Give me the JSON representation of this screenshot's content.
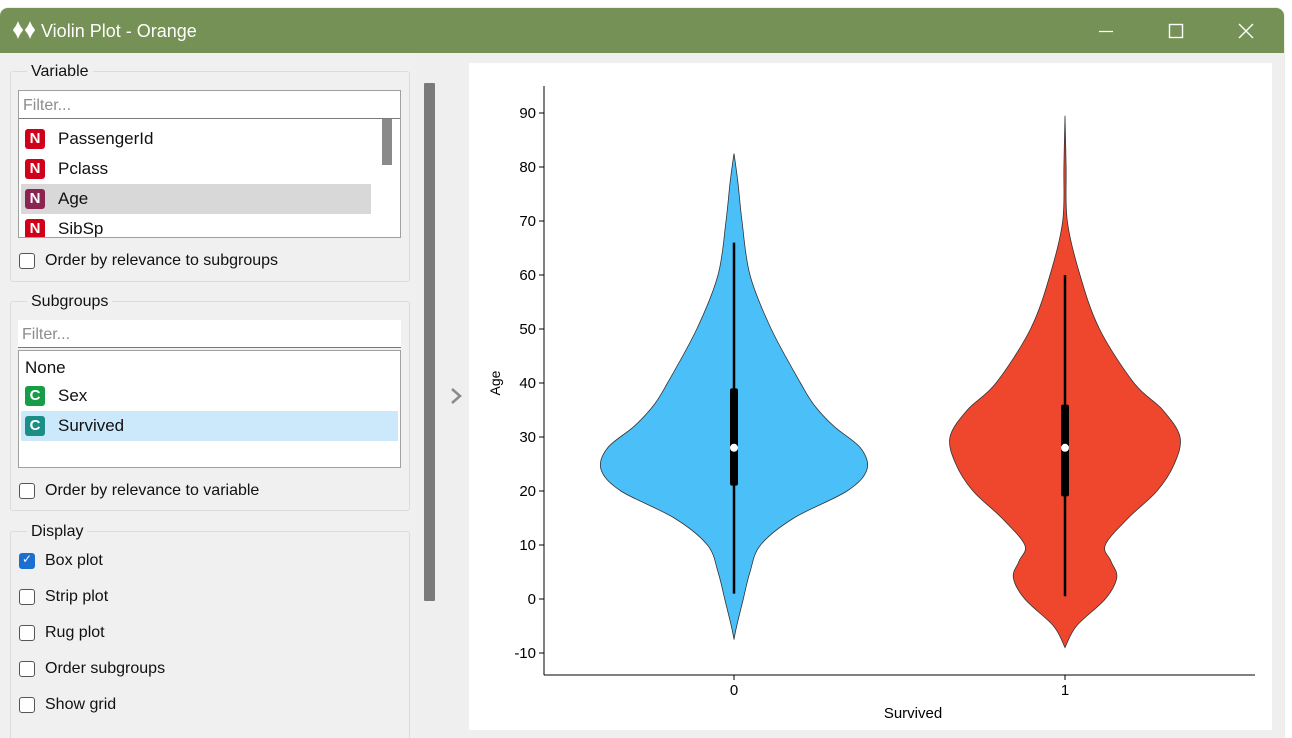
{
  "window": {
    "title": "Violin Plot - Orange",
    "app_icon": "violin-icon",
    "controls": [
      "minimize-icon",
      "maximize-icon",
      "close-icon"
    ]
  },
  "variable": {
    "title": "Variable",
    "filter_placeholder": "Filter...",
    "items": [
      {
        "type": "N",
        "label": "PassengerId"
      },
      {
        "type": "N",
        "label": "Pclass"
      },
      {
        "type": "N",
        "label": "Age"
      },
      {
        "type": "N",
        "label": "SibSp"
      }
    ],
    "selected": "Age",
    "order_label": "Order by relevance to subgroups",
    "order_checked": false
  },
  "subgroups": {
    "title": "Subgroups",
    "filter_placeholder": "Filter...",
    "items": [
      {
        "type": "",
        "label": "None"
      },
      {
        "type": "C",
        "label": "Sex"
      },
      {
        "type": "C",
        "label": "Survived"
      }
    ],
    "selected": "Survived",
    "order_label": "Order by relevance to variable",
    "order_checked": false
  },
  "display": {
    "title": "Display",
    "options": [
      {
        "label": "Box plot",
        "checked": true
      },
      {
        "label": "Strip plot",
        "checked": false
      },
      {
        "label": "Rug plot",
        "checked": false
      },
      {
        "label": "Order subgroups",
        "checked": false
      },
      {
        "label": "Show grid",
        "checked": false
      }
    ]
  },
  "colors": {
    "titlebar": "#759155",
    "survived_0": "#4bbff7",
    "survived_1": "#ef462e"
  },
  "chart_data": {
    "type": "violin",
    "xlabel": "Survived",
    "ylabel": "Age",
    "ylim": [
      -14,
      95
    ],
    "yticks": [
      -10,
      0,
      10,
      20,
      30,
      40,
      50,
      60,
      70,
      80,
      90
    ],
    "categories": [
      "0",
      "1"
    ],
    "grid": false,
    "box_plot": true,
    "series": [
      {
        "category": "0",
        "color": "#4bbff7",
        "whisker": [
          1,
          66
        ],
        "box": [
          21,
          39
        ],
        "median": 28,
        "profile": [
          [
            -7.5,
            0
          ],
          [
            -5,
            0.02
          ],
          [
            0,
            0.07
          ],
          [
            5,
            0.12
          ],
          [
            10,
            0.2
          ],
          [
            15,
            0.45
          ],
          [
            20,
            0.85
          ],
          [
            24,
            1.0
          ],
          [
            28,
            0.95
          ],
          [
            32,
            0.75
          ],
          [
            36,
            0.6
          ],
          [
            40,
            0.5
          ],
          [
            50,
            0.28
          ],
          [
            60,
            0.12
          ],
          [
            70,
            0.06
          ],
          [
            77,
            0.03
          ],
          [
            82.5,
            0
          ]
        ]
      },
      {
        "category": "1",
        "color": "#ef462e",
        "whisker": [
          0.5,
          60
        ],
        "box": [
          19,
          36
        ],
        "median": 28,
        "profile": [
          [
            -9,
            0
          ],
          [
            -5,
            0.1
          ],
          [
            0,
            0.35
          ],
          [
            4,
            0.45
          ],
          [
            7,
            0.4
          ],
          [
            10,
            0.35
          ],
          [
            15,
            0.55
          ],
          [
            20,
            0.8
          ],
          [
            25,
            0.95
          ],
          [
            30,
            1.0
          ],
          [
            35,
            0.85
          ],
          [
            40,
            0.6
          ],
          [
            50,
            0.3
          ],
          [
            60,
            0.13
          ],
          [
            70,
            0.02
          ],
          [
            80,
            0.01
          ],
          [
            89.5,
            0
          ]
        ]
      }
    ]
  }
}
